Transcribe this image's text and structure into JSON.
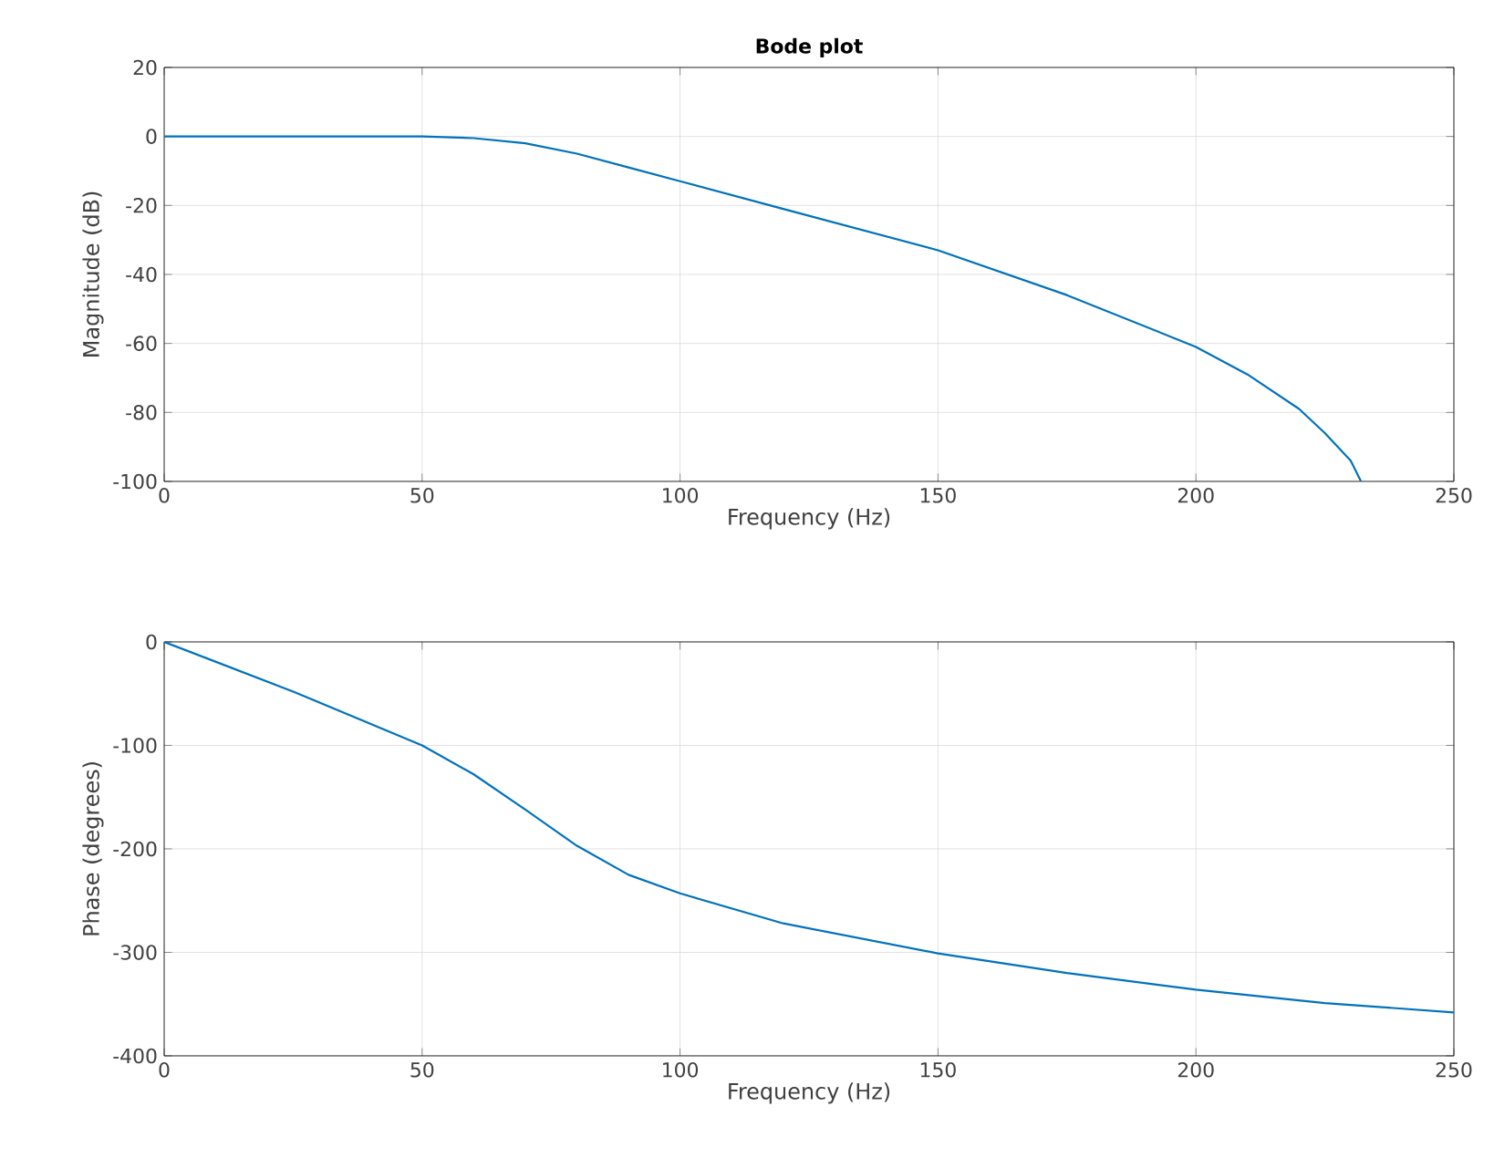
{
  "chart_data": [
    {
      "type": "line",
      "title": "Bode plot",
      "xlabel": "Frequency (Hz)",
      "ylabel": "Magnitude (dB)",
      "xlim": [
        0,
        250
      ],
      "ylim": [
        -100,
        20
      ],
      "xticks": [
        0,
        50,
        100,
        150,
        200,
        250
      ],
      "yticks": [
        -100,
        -80,
        -60,
        -40,
        -20,
        0,
        20
      ],
      "grid": true,
      "series": [
        {
          "color": "#0072bd",
          "x": [
            0,
            25,
            50,
            60,
            70,
            80,
            90,
            100,
            120,
            150,
            175,
            200,
            210,
            220,
            225,
            230,
            232
          ],
          "values": [
            0,
            0,
            0,
            -0.5,
            -2,
            -5,
            -9,
            -13,
            -21,
            -33,
            -46,
            -61,
            -69,
            -79,
            -86,
            -94,
            -100
          ]
        }
      ]
    },
    {
      "type": "line",
      "xlabel": "Frequency (Hz)",
      "ylabel": "Phase (degrees)",
      "xlim": [
        0,
        250
      ],
      "ylim": [
        -400,
        0
      ],
      "xticks": [
        0,
        50,
        100,
        150,
        200,
        250
      ],
      "yticks": [
        -400,
        -300,
        -200,
        -100,
        0
      ],
      "grid": true,
      "series": [
        {
          "color": "#0072bd",
          "x": [
            0,
            25,
            50,
            60,
            70,
            80,
            90,
            100,
            120,
            150,
            175,
            200,
            225,
            250
          ],
          "values": [
            0,
            -48,
            -100,
            -128,
            -162,
            -197,
            -225,
            -243,
            -272,
            -301,
            -320,
            -336,
            -349,
            -358
          ]
        }
      ]
    }
  ]
}
